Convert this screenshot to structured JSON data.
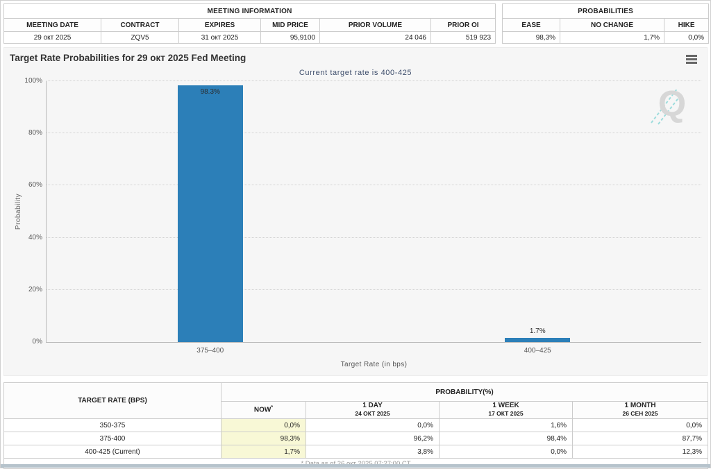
{
  "meeting_information": {
    "title": "MEETING INFORMATION",
    "columns": [
      "MEETING DATE",
      "CONTRACT",
      "EXPIRES",
      "MID PRICE",
      "PRIOR VOLUME",
      "PRIOR OI"
    ],
    "values": [
      "29 окт 2025",
      "ZQV5",
      "31 окт 2025",
      "95,9100",
      "24 046",
      "519 923"
    ]
  },
  "probabilities_summary": {
    "title": "PROBABILITIES",
    "columns": [
      "EASE",
      "NO CHANGE",
      "HIKE"
    ],
    "values": [
      "98,3%",
      "1,7%",
      "0,0%"
    ]
  },
  "chart": {
    "title": "Target Rate Probabilities for 29 окт 2025 Fed Meeting",
    "subtitle": "Current target rate is 400-425",
    "ylabel": "Probability",
    "xlabel": "Target Rate (in bps)",
    "watermark_letter": "Q"
  },
  "chart_data": {
    "type": "bar",
    "categories": [
      "375–400",
      "400–425"
    ],
    "values": [
      98.3,
      1.7
    ],
    "bar_labels": [
      "98.3%",
      "1.7%"
    ],
    "yticks": [
      "0%",
      "20%",
      "40%",
      "60%",
      "80%",
      "100%"
    ],
    "ylim": [
      0,
      100
    ],
    "grid": "dotted horizontal",
    "bar_color": "#2c7fb8",
    "title": "Target Rate Probabilities for 29 окт 2025 Fed Meeting",
    "subtitle": "Current target rate is 400-425",
    "xlabel": "Target Rate (in bps)",
    "ylabel": "Probability"
  },
  "probability_table": {
    "rate_header": "TARGET RATE (BPS)",
    "prob_header": "PROBABILITY(%)",
    "sub_headers": {
      "now_label": "NOW",
      "now_sup": "*",
      "day_label": "1 DAY",
      "day_date": "24 ОКТ 2025",
      "week_label": "1 WEEK",
      "week_date": "17 ОКТ 2025",
      "month_label": "1 MONTH",
      "month_date": "26 СЕН 2025"
    },
    "rows": [
      {
        "rate": "350-375",
        "now": "0,0%",
        "day": "0,0%",
        "week": "1,6%",
        "month": "0,0%"
      },
      {
        "rate": "375-400",
        "now": "98,3%",
        "day": "96,2%",
        "week": "98,4%",
        "month": "87,7%"
      },
      {
        "rate": "400-425 (Current)",
        "now": "1,7%",
        "day": "3,8%",
        "week": "0,0%",
        "month": "12,3%"
      }
    ],
    "footnote": "* Data as of 26 окт 2025 07:27:00 CT"
  },
  "colors": {
    "bar": "#2c7fb8",
    "subtitle_text": "#3d4d6b",
    "now_highlight": "#f8f8d6",
    "bottom_strip": "#b6c3cc",
    "watermark_teal": "#4fc8c8"
  }
}
